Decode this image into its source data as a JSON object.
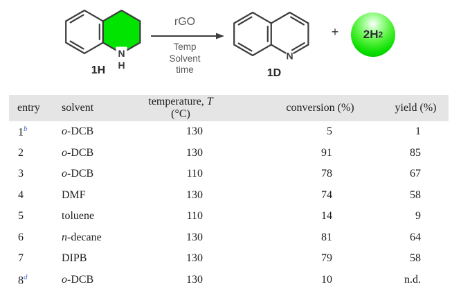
{
  "colors": {
    "highlight_green": "#00e400",
    "sphere_green": "#0ade00",
    "structure_line": "#3d3d3d",
    "scheme_text_gray": "#58595b",
    "header_bg": "#e5e5e5",
    "footnote_blue": "#4466cc"
  },
  "scheme": {
    "reactant_label": "1H",
    "product_label": "1D",
    "arrow_top": "rGO",
    "arrow_bottom": [
      "Temp",
      "Solvent",
      "time"
    ],
    "plus": "+",
    "hydrogen_main": "2H",
    "hydrogen_sub": "2",
    "amine_n": "N",
    "amine_h": "H",
    "quinoline_n": "N"
  },
  "table": {
    "headers": {
      "entry": "entry",
      "solvent": "solvent",
      "temperature_pre": "temperature, ",
      "temperature_symbol": "T",
      "temperature_post": " (°C)",
      "conversion": "conversion (%)",
      "yield": "yield (%)"
    },
    "rows": [
      {
        "entry": "1",
        "sup": "b",
        "solvent_italic": "o",
        "solvent_rest": "-DCB",
        "temperature": "130",
        "conversion": "5",
        "yield": "1"
      },
      {
        "entry": "2",
        "sup": "",
        "solvent_italic": "o",
        "solvent_rest": "-DCB",
        "temperature": "130",
        "conversion": "91",
        "yield": "85"
      },
      {
        "entry": "3",
        "sup": "",
        "solvent_italic": "o",
        "solvent_rest": "-DCB",
        "temperature": "110",
        "conversion": "78",
        "yield": "67"
      },
      {
        "entry": "4",
        "sup": "",
        "solvent_italic": "",
        "solvent_rest": "DMF",
        "temperature": "130",
        "conversion": "74",
        "yield": "58"
      },
      {
        "entry": "5",
        "sup": "",
        "solvent_italic": "",
        "solvent_rest": "toluene",
        "temperature": "110",
        "conversion": "14",
        "yield": "9"
      },
      {
        "entry": "6",
        "sup": "",
        "solvent_italic": "n",
        "solvent_rest": "-decane",
        "temperature": "130",
        "conversion": "81",
        "yield": "64"
      },
      {
        "entry": "7",
        "sup": "",
        "solvent_italic": "",
        "solvent_rest": "DIPB",
        "temperature": "130",
        "conversion": "79",
        "yield": "58"
      },
      {
        "entry": "8",
        "sup": "d",
        "solvent_italic": "o",
        "solvent_rest": "-DCB",
        "temperature": "130",
        "conversion": "10",
        "yield": "n.d."
      }
    ]
  }
}
